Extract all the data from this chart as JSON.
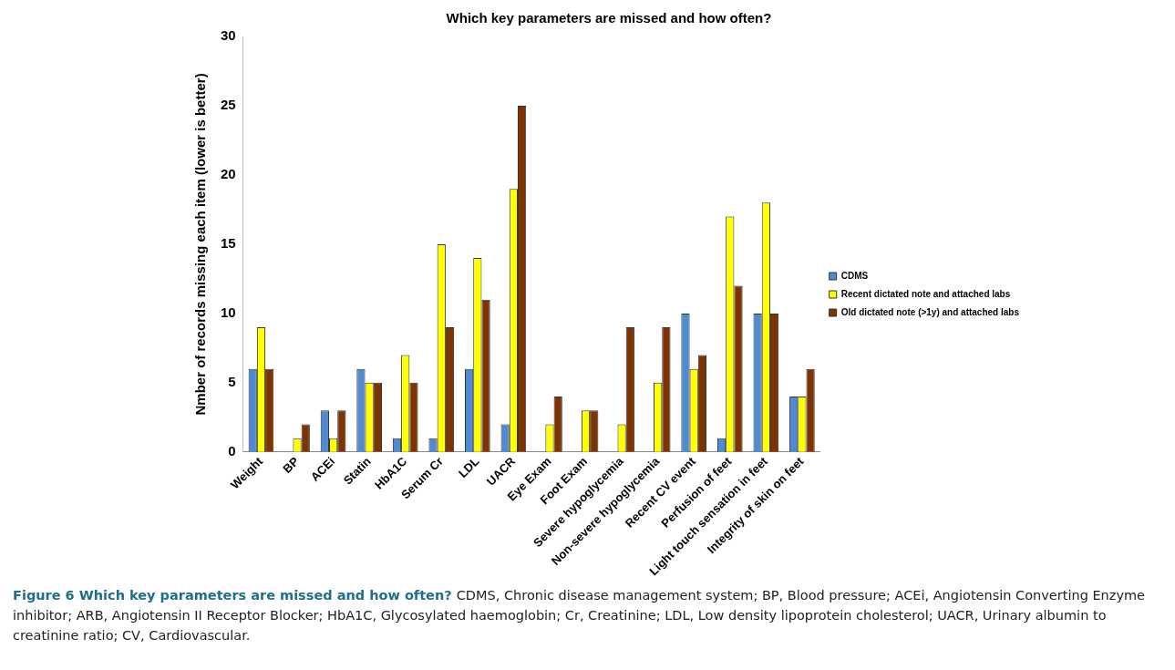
{
  "chart_data": {
    "type": "bar",
    "title": "Which key parameters are missed and how often?",
    "ylabel": "Nmber of records missing each item (lower is better)",
    "categories": [
      "Weight",
      "BP",
      "ACEi",
      "Statin",
      "HbA1C",
      "Serum Cr",
      "LDL",
      "UACR",
      "Eye Exam",
      "Foot Exam",
      "Severe hypoglycemia",
      "Non-severe hypoglycemia",
      "Recent CV event",
      "Perfusion of feet",
      "Light touch sensation in feet",
      "Integrity of skin on feet"
    ],
    "series": [
      {
        "name": "CDMS",
        "color": "#4f8ad2",
        "values": [
          6,
          0,
          3,
          6,
          1,
          1,
          6,
          2,
          0,
          0,
          0,
          0,
          10,
          1,
          10,
          4
        ]
      },
      {
        "name": "Recent dictated note and attached labs",
        "color": "#ffff00",
        "values": [
          9,
          1,
          1,
          5,
          7,
          15,
          14,
          19,
          2,
          3,
          2,
          5,
          6,
          17,
          18,
          4
        ]
      },
      {
        "name": "Old dictated note (>1y) and attached labs",
        "color": "#7f3300",
        "values": [
          6,
          2,
          3,
          5,
          5,
          9,
          11,
          25,
          4,
          3,
          9,
          9,
          7,
          12,
          10,
          6
        ]
      }
    ],
    "ylim": [
      0,
      30
    ],
    "yticks": [
      0,
      5,
      10,
      15,
      20,
      25,
      30
    ],
    "grid": false,
    "legend": "right",
    "annotations": [
      "Figure 6 Which key parameters are missed and how often?",
      "CDMS, Chronic disease management system; BP, Blood pressure; ACEi, Angiotensin Converting Enzyme inhibitor; ARB, Angiotensin II Receptor Blocker; HbA1C, Glycosylated haemoglobin; Cr, Creatinine; LDL, Low density lipoprotein cholesterol; UACR, Urinary albumin to creatinine ratio; CV, Cardiovascular."
    ]
  }
}
